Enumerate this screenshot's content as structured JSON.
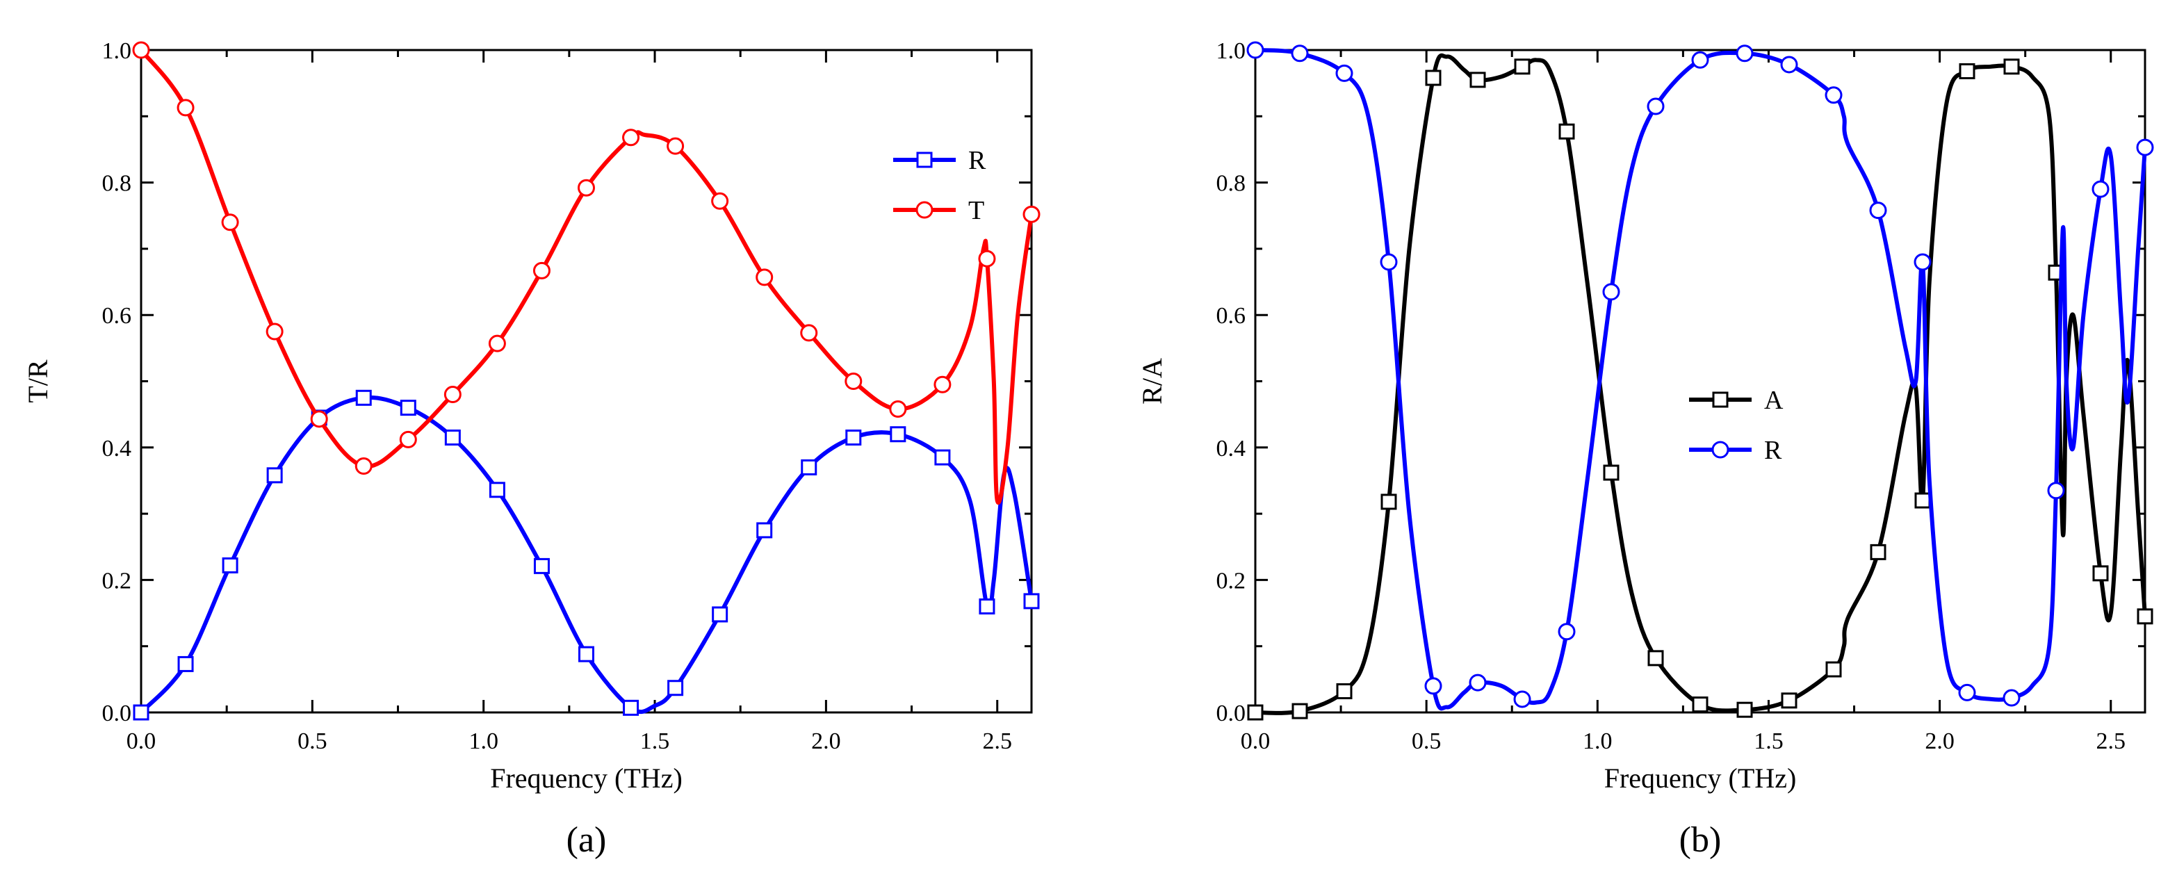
{
  "chart_data": [
    {
      "panel": "(a)",
      "type": "line",
      "xlabel": "Frequency (THz)",
      "ylabel": "T/R",
      "xlim": [
        0.0,
        2.6
      ],
      "ylim": [
        0.0,
        1.0
      ],
      "xticks": [
        "0.0",
        "0.5",
        "1.0",
        "1.5",
        "2.0",
        "2.5"
      ],
      "yticks": [
        "0.0",
        "0.2",
        "0.4",
        "0.6",
        "0.8",
        "1.0"
      ],
      "legend_position": "upper-right",
      "series": [
        {
          "name": "R",
          "color": "#0000ff",
          "marker": "square",
          "x": [
            0.0,
            0.13,
            0.26,
            0.39,
            0.52,
            0.65,
            0.78,
            0.91,
            1.04,
            1.17,
            1.3,
            1.43,
            1.5,
            1.56,
            1.69,
            1.82,
            1.95,
            2.08,
            2.21,
            2.34,
            2.42,
            2.47,
            2.49,
            2.52,
            2.55,
            2.6
          ],
          "y": [
            0.0,
            0.073,
            0.222,
            0.358,
            0.445,
            0.475,
            0.46,
            0.415,
            0.336,
            0.221,
            0.088,
            0.007,
            0.01,
            0.037,
            0.148,
            0.275,
            0.37,
            0.415,
            0.42,
            0.385,
            0.32,
            0.16,
            0.2,
            0.36,
            0.33,
            0.168
          ]
        },
        {
          "name": "T",
          "color": "#ff0000",
          "marker": "circle",
          "x": [
            0.0,
            0.13,
            0.26,
            0.39,
            0.52,
            0.65,
            0.78,
            0.91,
            1.04,
            1.17,
            1.3,
            1.43,
            1.47,
            1.56,
            1.69,
            1.82,
            1.95,
            2.08,
            2.21,
            2.34,
            2.42,
            2.46,
            2.47,
            2.49,
            2.5,
            2.53,
            2.56,
            2.6
          ],
          "y": [
            1.0,
            0.913,
            0.74,
            0.575,
            0.443,
            0.372,
            0.412,
            0.48,
            0.557,
            0.667,
            0.792,
            0.868,
            0.872,
            0.855,
            0.772,
            0.657,
            0.573,
            0.5,
            0.458,
            0.495,
            0.58,
            0.7,
            0.685,
            0.5,
            0.32,
            0.4,
            0.6,
            0.752
          ]
        }
      ]
    },
    {
      "panel": "(b)",
      "type": "line",
      "xlabel": "Frequency (THz)",
      "ylabel": "R/A",
      "xlim": [
        0.0,
        2.6
      ],
      "ylim": [
        0.0,
        1.0
      ],
      "xticks": [
        "0.0",
        "0.5",
        "1.0",
        "1.5",
        "2.0",
        "2.5"
      ],
      "yticks": [
        "0.0",
        "0.2",
        "0.4",
        "0.6",
        "0.8",
        "1.0"
      ],
      "legend_position": "center",
      "series": [
        {
          "name": "A",
          "color": "#000000",
          "marker": "square",
          "x": [
            0.0,
            0.13,
            0.26,
            0.33,
            0.39,
            0.45,
            0.52,
            0.56,
            0.61,
            0.65,
            0.72,
            0.78,
            0.82,
            0.86,
            0.91,
            0.97,
            1.04,
            1.1,
            1.17,
            1.3,
            1.43,
            1.56,
            1.69,
            1.72,
            1.73,
            1.82,
            1.9,
            1.93,
            1.95,
            1.97,
            2.02,
            2.08,
            2.15,
            2.21,
            2.27,
            2.32,
            2.34,
            2.36,
            2.37,
            2.39,
            2.42,
            2.47,
            2.5,
            2.53,
            2.55,
            2.58,
            2.6
          ],
          "y": [
            0.0,
            0.002,
            0.032,
            0.1,
            0.318,
            0.7,
            0.958,
            0.99,
            0.97,
            0.955,
            0.96,
            0.975,
            0.985,
            0.97,
            0.877,
            0.65,
            0.362,
            0.18,
            0.082,
            0.012,
            0.004,
            0.018,
            0.065,
            0.1,
            0.14,
            0.242,
            0.45,
            0.49,
            0.32,
            0.65,
            0.92,
            0.968,
            0.975,
            0.975,
            0.96,
            0.9,
            0.664,
            0.27,
            0.5,
            0.6,
            0.45,
            0.21,
            0.15,
            0.4,
            0.53,
            0.3,
            0.145
          ]
        },
        {
          "name": "R",
          "color": "#0000ff",
          "marker": "circle",
          "x": [
            0.0,
            0.13,
            0.26,
            0.33,
            0.39,
            0.45,
            0.52,
            0.56,
            0.61,
            0.65,
            0.72,
            0.78,
            0.82,
            0.86,
            0.91,
            0.97,
            1.04,
            1.1,
            1.17,
            1.3,
            1.43,
            1.56,
            1.69,
            1.72,
            1.73,
            1.82,
            1.9,
            1.93,
            1.95,
            1.97,
            2.02,
            2.08,
            2.15,
            2.21,
            2.27,
            2.32,
            2.34,
            2.36,
            2.37,
            2.39,
            2.42,
            2.47,
            2.5,
            2.53,
            2.55,
            2.58,
            2.6
          ],
          "y": [
            1.0,
            0.995,
            0.965,
            0.9,
            0.68,
            0.3,
            0.04,
            0.008,
            0.03,
            0.045,
            0.04,
            0.02,
            0.015,
            0.03,
            0.122,
            0.35,
            0.635,
            0.82,
            0.915,
            0.985,
            0.995,
            0.978,
            0.932,
            0.9,
            0.86,
            0.758,
            0.55,
            0.5,
            0.68,
            0.35,
            0.08,
            0.03,
            0.02,
            0.022,
            0.04,
            0.1,
            0.335,
            0.73,
            0.5,
            0.4,
            0.6,
            0.79,
            0.84,
            0.6,
            0.47,
            0.7,
            0.853
          ]
        }
      ]
    }
  ]
}
